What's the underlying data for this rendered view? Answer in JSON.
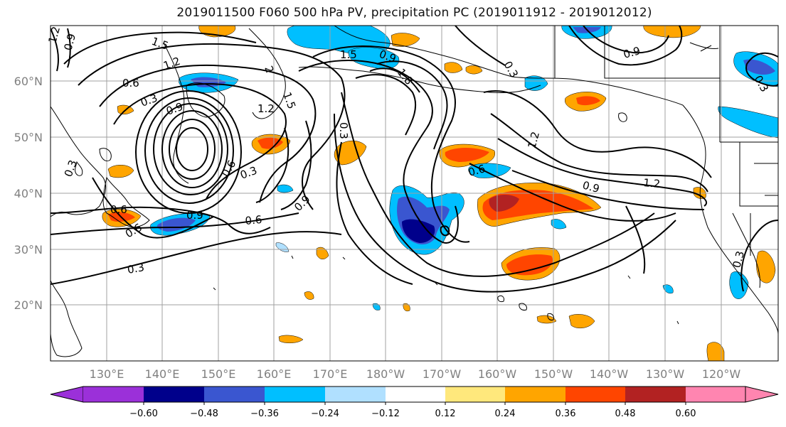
{
  "title": "2019011500 F060 500 hPa PV, precipitation PC (2019011912 - 2019012012)",
  "lat_labels": [
    "60°N",
    "50°N",
    "40°N",
    "30°N",
    "20°N"
  ],
  "lon_labels": [
    "130°E",
    "140°E",
    "150°E",
    "160°E",
    "170°E",
    "180°W",
    "170°W",
    "160°W",
    "150°W",
    "140°W",
    "130°W",
    "120°W"
  ],
  "colorbar": {
    "ticks": [
      "−0.60",
      "−0.48",
      "−0.36",
      "−0.24",
      "−0.12",
      "0.12",
      "0.24",
      "0.36",
      "0.48",
      "0.60"
    ],
    "colors": [
      "#9b30d9",
      "#00008b",
      "#3a56d0",
      "#00bfff",
      "#b0e0ff",
      "#ffffff",
      "#ffe87c",
      "#ffa500",
      "#ff4500",
      "#b22222",
      "#ff85b0"
    ]
  },
  "contour_labels": [
    {
      "text": "1.2"
    },
    {
      "text": "0.9"
    },
    {
      "text": "1.5"
    },
    {
      "text": "1.2"
    },
    {
      "text": "2"
    },
    {
      "text": "0.6"
    },
    {
      "text": "0.3"
    },
    {
      "text": "0.9"
    },
    {
      "text": "1.2"
    },
    {
      "text": "1.5"
    },
    {
      "text": "0.6"
    },
    {
      "text": "0.3"
    },
    {
      "text": "1.5"
    },
    {
      "text": "0.9"
    },
    {
      "text": "1.8"
    },
    {
      "text": "0.3"
    },
    {
      "text": "0.9"
    },
    {
      "text": "0.3"
    },
    {
      "text": "1.2"
    },
    {
      "text": "0.6"
    },
    {
      "text": "0.9"
    },
    {
      "text": "1.2"
    },
    {
      "text": "0.9"
    },
    {
      "text": "0.3"
    },
    {
      "text": "0.6"
    },
    {
      "text": "0.6"
    },
    {
      "text": "0.9"
    },
    {
      "text": "0.6"
    },
    {
      "text": "0.3"
    },
    {
      "text": "0.3"
    },
    {
      "text": "0.3"
    }
  ]
}
